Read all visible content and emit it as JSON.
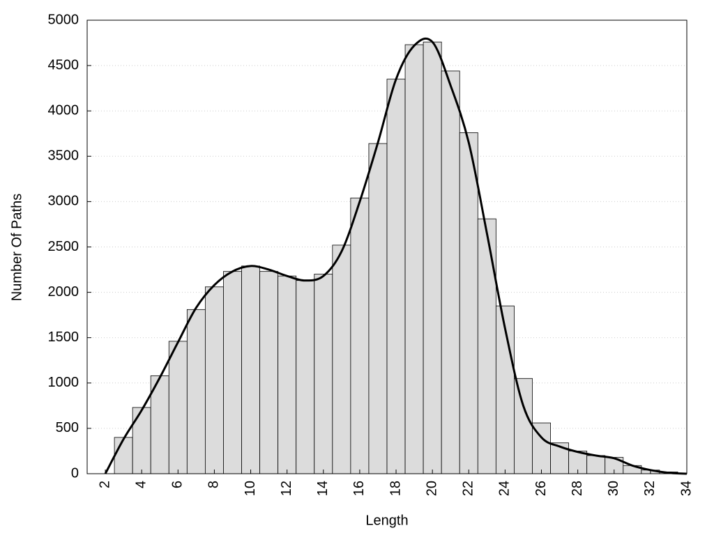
{
  "chart_data": {
    "type": "histogram",
    "x_label": "Length",
    "y_label": "Number Of Paths",
    "bins": [
      2.5,
      3.5,
      4.5,
      5.5,
      6.5,
      7.5,
      8.5,
      9.5,
      10.5,
      11.5,
      12.5,
      13.5,
      14.5,
      15.5,
      16.5,
      17.5,
      18.5,
      19.5,
      20.5,
      21.5,
      22.5,
      23.5,
      24.5,
      25.5,
      26.5,
      27.5,
      28.5,
      29.5,
      30.5,
      31.5,
      32.5,
      33.5
    ],
    "counts": [
      400,
      730,
      1080,
      1460,
      1810,
      2060,
      2230,
      2290,
      2230,
      2180,
      2130,
      2200,
      2520,
      3040,
      3640,
      4350,
      4730,
      4760,
      4440,
      3760,
      2810,
      1850,
      1050,
      560,
      340,
      250,
      200,
      180,
      90,
      40,
      20
    ],
    "color": "#dcdcdc",
    "curve": {
      "x": [
        2,
        3,
        4,
        5,
        6,
        7,
        8,
        9,
        10,
        11,
        12,
        13,
        14,
        15,
        16,
        17,
        18,
        19,
        20,
        21,
        22,
        23,
        24,
        25,
        26,
        27,
        28,
        29,
        30,
        31,
        32,
        33,
        34
      ],
      "values": [
        0,
        380,
        700,
        1060,
        1450,
        1830,
        2080,
        2230,
        2290,
        2250,
        2180,
        2130,
        2180,
        2450,
        3000,
        3650,
        4350,
        4720,
        4760,
        4280,
        3650,
        2650,
        1600,
        750,
        400,
        300,
        240,
        200,
        170,
        90,
        40,
        10,
        0
      ],
      "color": "#000000"
    },
    "xlim": [
      1,
      34
    ],
    "xticks": [
      2,
      4,
      6,
      8,
      10,
      12,
      14,
      16,
      18,
      20,
      22,
      24,
      26,
      28,
      30,
      32,
      34
    ],
    "ylim": [
      0,
      5000
    ],
    "yticks": [
      0,
      500,
      1000,
      1500,
      2000,
      2500,
      3000,
      3500,
      4000,
      4500,
      5000
    ],
    "grid": true
  }
}
